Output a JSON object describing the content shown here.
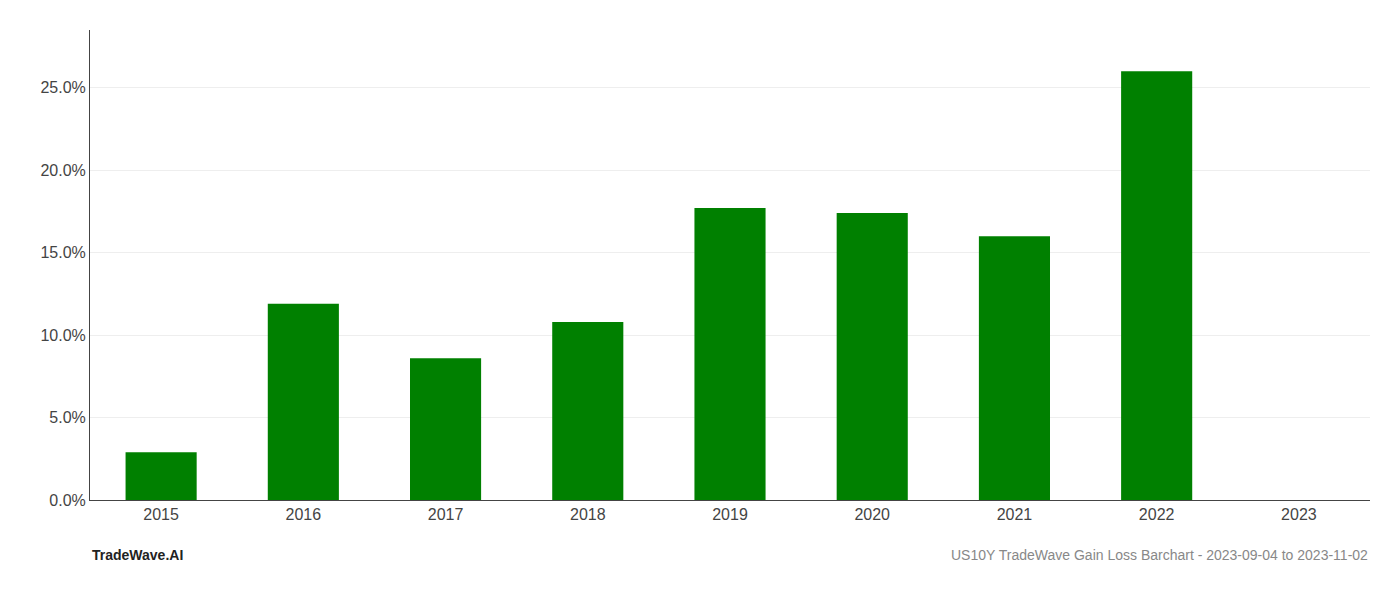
{
  "chart_data": {
    "type": "bar",
    "categories": [
      "2015",
      "2016",
      "2017",
      "2018",
      "2019",
      "2020",
      "2021",
      "2022",
      "2023"
    ],
    "values": [
      0.029,
      0.119,
      0.086,
      0.108,
      0.177,
      0.174,
      0.16,
      0.26,
      null
    ],
    "color": "#008000",
    "ylim": [
      0,
      0.285
    ],
    "yticks": [
      {
        "value": 0.0,
        "label": "0.0%"
      },
      {
        "value": 0.05,
        "label": "5.0%"
      },
      {
        "value": 0.1,
        "label": "10.0%"
      },
      {
        "value": 0.15,
        "label": "15.0%"
      },
      {
        "value": 0.2,
        "label": "20.0%"
      },
      {
        "value": 0.25,
        "label": "25.0%"
      }
    ],
    "grid": true,
    "annotations": [
      "TradeWave.AI",
      "US10Y TradeWave Gain Loss Barchart - 2023-09-04 to 2023-11-02"
    ]
  }
}
